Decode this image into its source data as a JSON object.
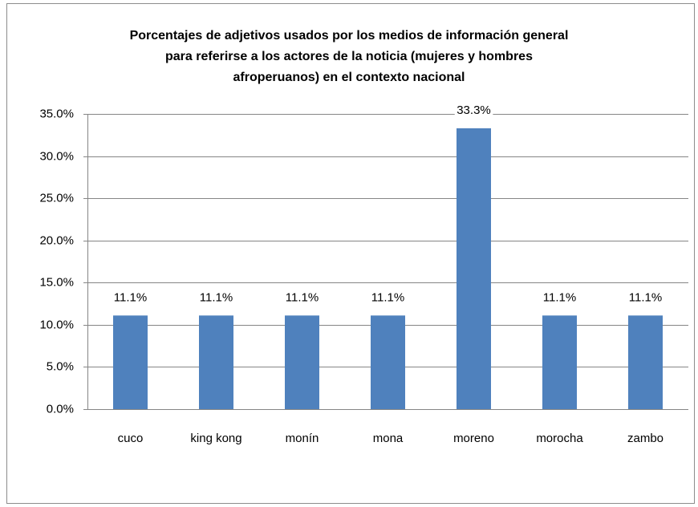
{
  "chart_data": {
    "type": "bar",
    "title": [
      "Porcentajes de adjetivos usados  por los medios de información general",
      "para referirse a los actores de la noticia (mujeres y hombres",
      "afroperuanos) en el contexto nacional"
    ],
    "categories": [
      "cuco",
      "king kong",
      "monín",
      "mona",
      "moreno",
      "morocha",
      "zambo"
    ],
    "values": [
      11.1,
      11.1,
      11.1,
      11.1,
      33.3,
      11.1,
      11.1
    ],
    "value_labels": [
      "11.1%",
      "11.1%",
      "11.1%",
      "11.1%",
      "33.3%",
      "11.1%",
      "11.1%"
    ],
    "color": "#4f81bd",
    "ylim": [
      0,
      35
    ],
    "yticks": [
      {
        "value": 0,
        "label": "0.0%"
      },
      {
        "value": 5,
        "label": "5.0%"
      },
      {
        "value": 10,
        "label": "10.0%"
      },
      {
        "value": 15,
        "label": "15.0%"
      },
      {
        "value": 20,
        "label": "20.0%"
      },
      {
        "value": 25,
        "label": "25.0%"
      },
      {
        "value": 30,
        "label": "30.0%"
      },
      {
        "value": 35,
        "label": "35.0%"
      }
    ],
    "grid": true
  }
}
